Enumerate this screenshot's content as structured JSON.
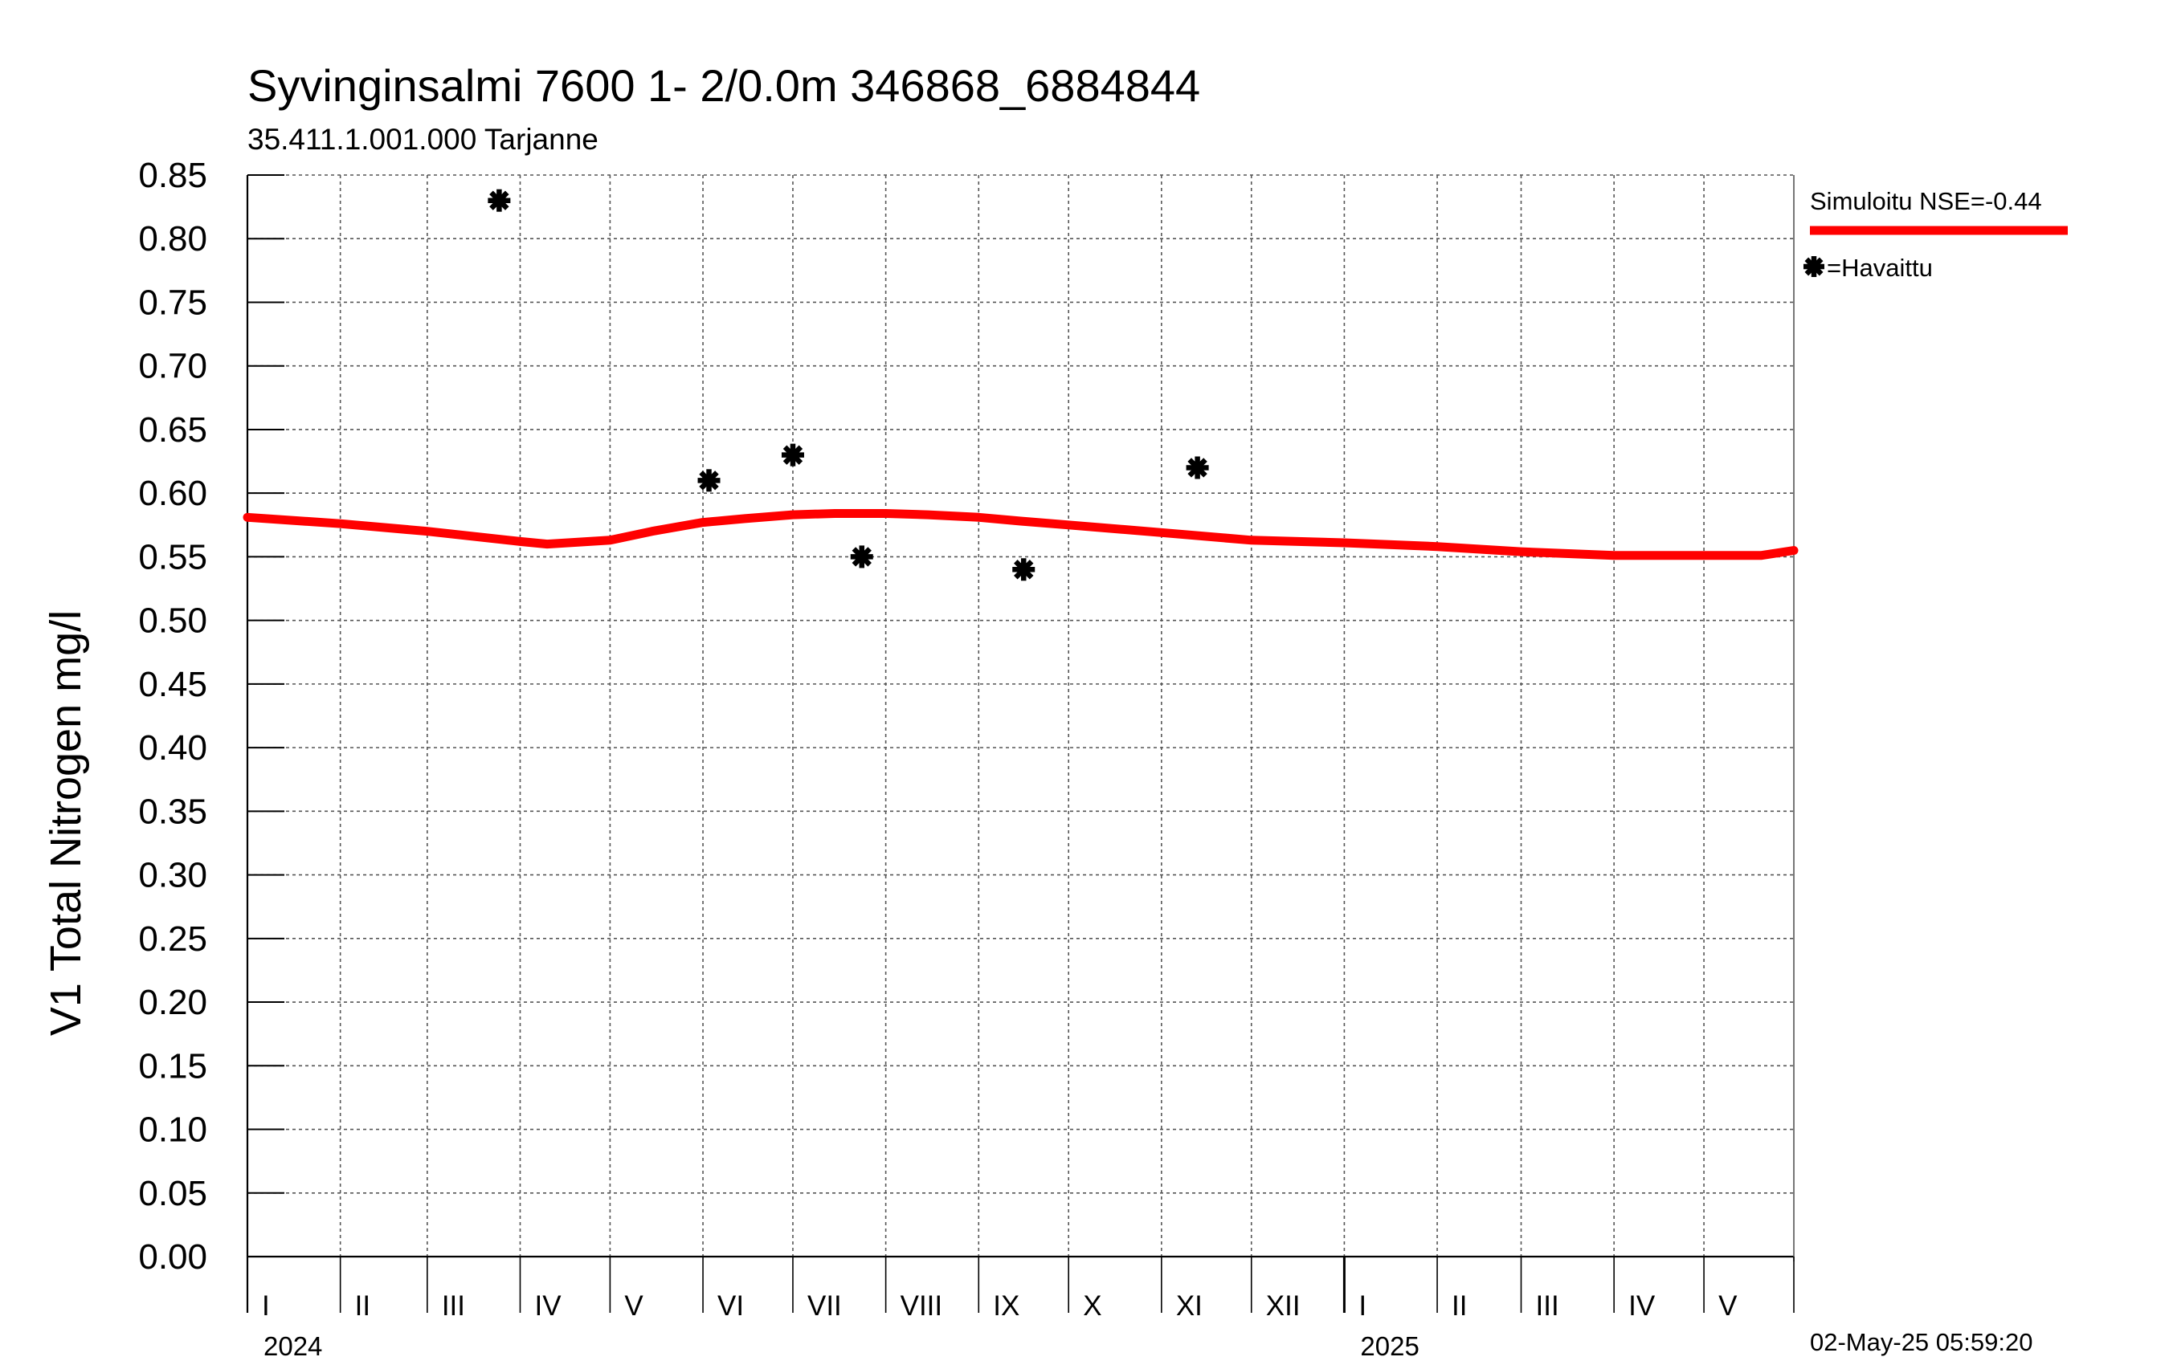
{
  "chart_data": {
    "type": "scatter",
    "title": "Syvinginsalmi 7600   1- 2/0.0m  346868_6884844",
    "subtitle": "35.411.1.001.000 Tarjanne",
    "ylabel": "V1 Total Nitrogen mg/l",
    "ylim": [
      0,
      0.85
    ],
    "yticks": [
      "0.00",
      "0.05",
      "0.10",
      "0.15",
      "0.20",
      "0.25",
      "0.30",
      "0.35",
      "0.40",
      "0.45",
      "0.50",
      "0.55",
      "0.60",
      "0.65",
      "0.70",
      "0.75",
      "0.80",
      "0.85"
    ],
    "xlim": [
      "2024-01-01",
      "2025-05-31"
    ],
    "months": [
      "I",
      "II",
      "III",
      "IV",
      "V",
      "VI",
      "VII",
      "VIII",
      "IX",
      "X",
      "XI",
      "XII",
      "I",
      "II",
      "III",
      "IV",
      "V"
    ],
    "years": [
      "2024",
      "2025"
    ],
    "grid": true,
    "legend_position": "right",
    "series": [
      {
        "name": "Simuloitu NSE=-0.44",
        "kind": "line",
        "color": "#ff0000",
        "points": [
          [
            "2024-01-01",
            0.581
          ],
          [
            "2024-02-01",
            0.576
          ],
          [
            "2024-03-01",
            0.57
          ],
          [
            "2024-04-01",
            0.562
          ],
          [
            "2024-04-10",
            0.56
          ],
          [
            "2024-05-01",
            0.563
          ],
          [
            "2024-05-15",
            0.57
          ],
          [
            "2024-06-01",
            0.577
          ],
          [
            "2024-06-15",
            0.58
          ],
          [
            "2024-07-01",
            0.583
          ],
          [
            "2024-07-15",
            0.584
          ],
          [
            "2024-08-01",
            0.584
          ],
          [
            "2024-08-15",
            0.583
          ],
          [
            "2024-09-01",
            0.581
          ],
          [
            "2024-09-15",
            0.578
          ],
          [
            "2024-10-01",
            0.575
          ],
          [
            "2024-11-01",
            0.569
          ],
          [
            "2024-12-01",
            0.563
          ],
          [
            "2025-01-01",
            0.561
          ],
          [
            "2025-02-01",
            0.558
          ],
          [
            "2025-03-01",
            0.554
          ],
          [
            "2025-04-01",
            0.551
          ],
          [
            "2025-05-01",
            0.551
          ],
          [
            "2025-05-20",
            0.551
          ],
          [
            "2025-05-31",
            0.555
          ]
        ]
      },
      {
        "name": "=Havaittu",
        "kind": "scatter",
        "color": "#000000",
        "marker": "asterisk",
        "points": [
          [
            "2024-03-25",
            0.83
          ],
          [
            "2024-06-03",
            0.61
          ],
          [
            "2024-07-01",
            0.63
          ],
          [
            "2024-07-24",
            0.55
          ],
          [
            "2024-09-16",
            0.54
          ],
          [
            "2024-11-13",
            0.62
          ]
        ]
      }
    ]
  },
  "timestamp": "02-May-25 05:59:20"
}
